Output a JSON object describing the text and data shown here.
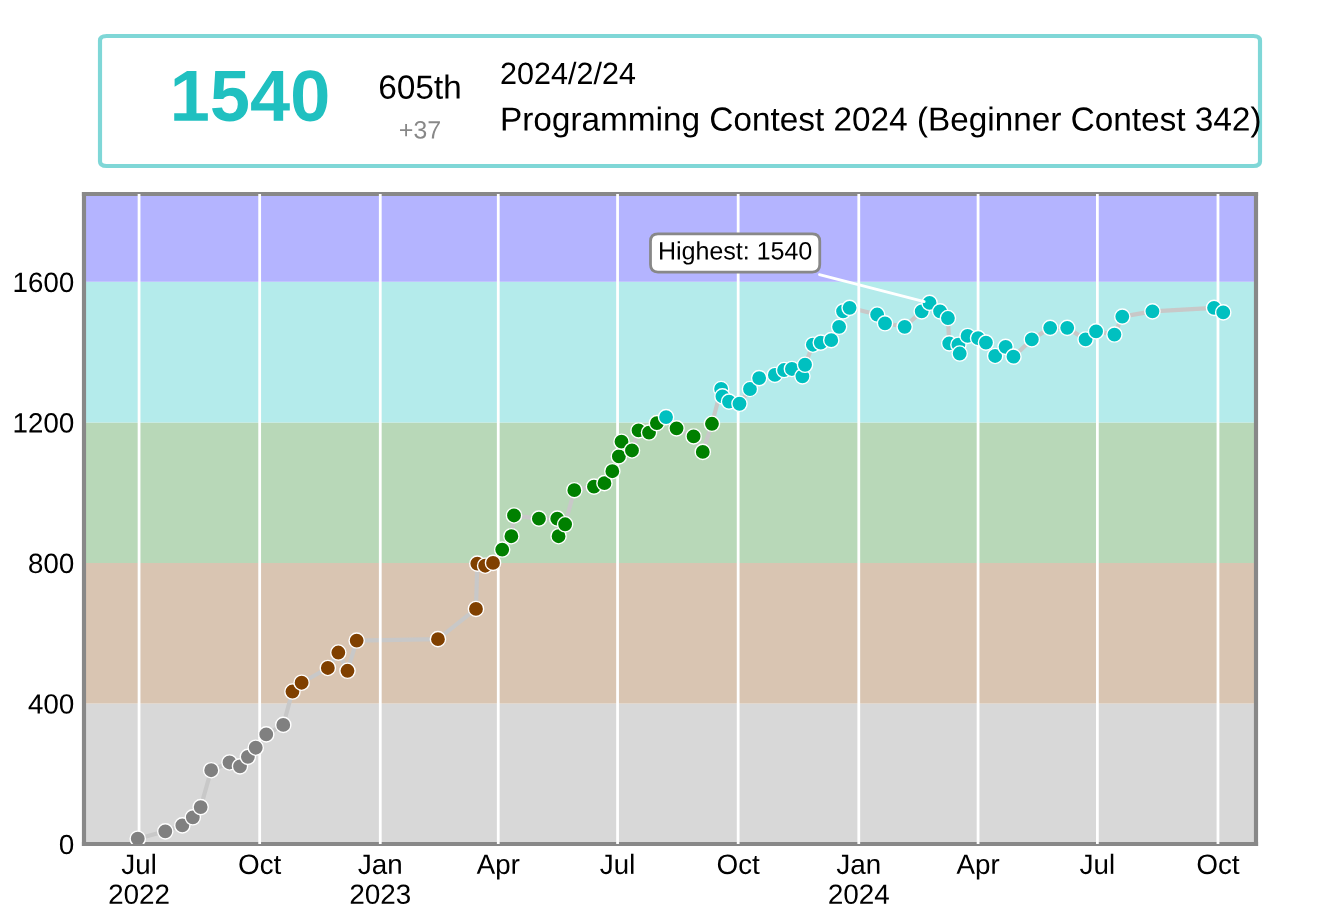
{
  "chart_data": {
    "type": "line",
    "title": "Programming Contest 2024 (Beginner Contest 342)",
    "annotations": [
      "1540",
      "605th",
      "+37",
      "2024/2/24",
      {
        "text": "Highest: 1540",
        "x": "2024-02-24",
        "y": 1540
      }
    ],
    "x": [
      "2022-06-30",
      "2022-07-21",
      "2022-08-03",
      "2022-08-11",
      "2022-08-17",
      "2022-08-25",
      "2022-09-08",
      "2022-09-16",
      "2022-09-22",
      "2022-09-28",
      "2022-10-06",
      "2022-10-19",
      "2022-10-26",
      "2022-11-02",
      "2022-11-22",
      "2022-11-30",
      "2022-12-07",
      "2022-12-14",
      "2023-02-14",
      "2023-03-15",
      "2023-03-16",
      "2023-03-22",
      "2023-03-28",
      "2023-04-04",
      "2023-04-11",
      "2023-04-13",
      "2023-05-02",
      "2023-05-16",
      "2023-05-17",
      "2023-05-22",
      "2023-05-29",
      "2023-06-13",
      "2023-06-21",
      "2023-06-27",
      "2023-07-02",
      "2023-07-04",
      "2023-07-12",
      "2023-07-17",
      "2023-07-25",
      "2023-07-31",
      "2023-08-07",
      "2023-08-15",
      "2023-08-28",
      "2023-09-04",
      "2023-09-11",
      "2023-09-18",
      "2023-09-19",
      "2023-09-24",
      "2023-10-02",
      "2023-10-10",
      "2023-10-17",
      "2023-10-29",
      "2023-11-05",
      "2023-11-11",
      "2023-11-19",
      "2023-11-21",
      "2023-11-27",
      "2023-12-03",
      "2023-12-11",
      "2023-12-17",
      "2023-12-20",
      "2023-12-25",
      "2024-01-15",
      "2024-01-21",
      "2024-02-05",
      "2024-02-18",
      "2024-02-24",
      "2024-03-03",
      "2024-03-09",
      "2024-03-10",
      "2024-03-17",
      "2024-03-18",
      "2024-03-24",
      "2024-04-01",
      "2024-04-07",
      "2024-04-14",
      "2024-04-22",
      "2024-04-28",
      "2024-05-12",
      "2024-05-26",
      "2024-06-08",
      "2024-06-22",
      "2024-06-30",
      "2024-07-14",
      "2024-07-20",
      "2024-08-12",
      "2024-09-28",
      "2024-10-05"
    ],
    "series": [
      {
        "color": "#c8c8c8",
        "values": [
          15,
          36,
          53,
          76,
          105,
          210,
          232,
          221,
          248,
          274,
          312,
          339,
          434,
          459,
          501,
          545,
          493,
          579,
          583,
          669,
          798,
          792,
          800,
          838,
          876,
          935,
          926,
          926,
          876,
          910,
          1007,
          1017,
          1027,
          1061,
          1103,
          1145,
          1120,
          1177,
          1171,
          1198,
          1215,
          1183,
          1160,
          1116,
          1196,
          1295,
          1274,
          1259,
          1253,
          1295,
          1326,
          1335,
          1349,
          1352,
          1331,
          1364,
          1421,
          1427,
          1434,
          1472,
          1516,
          1526,
          1507,
          1482,
          1472,
          1516,
          1540,
          1516,
          1497,
          1425,
          1421,
          1396,
          1446,
          1440,
          1427,
          1389,
          1415,
          1387,
          1436,
          1469,
          1469,
          1436,
          1459,
          1450,
          1501,
          1516,
          1526,
          1513
        ],
        "colors": [
          "#808080",
          "#808080",
          "#808080",
          "#808080",
          "#808080",
          "#808080",
          "#808080",
          "#808080",
          "#808080",
          "#808080",
          "#808080",
          "#808080",
          "#804000",
          "#804000",
          "#804000",
          "#804000",
          "#804000",
          "#804000",
          "#804000",
          "#804000",
          "#804000",
          "#804000",
          "#804000",
          "#008000",
          "#008000",
          "#008000",
          "#008000",
          "#008000",
          "#008000",
          "#008000",
          "#008000",
          "#008000",
          "#008000",
          "#008000",
          "#008000",
          "#008000",
          "#008000",
          "#008000",
          "#008000",
          "#008000",
          "#00c0c0",
          "#008000",
          "#008000",
          "#008000",
          "#008000",
          "#00c0c0",
          "#00c0c0",
          "#00c0c0",
          "#00c0c0",
          "#00c0c0",
          "#00c0c0",
          "#00c0c0",
          "#00c0c0",
          "#00c0c0",
          "#00c0c0",
          "#00c0c0",
          "#00c0c0",
          "#00c0c0",
          "#00c0c0",
          "#00c0c0",
          "#00c0c0",
          "#00c0c0",
          "#00c0c0",
          "#00c0c0",
          "#00c0c0",
          "#00c0c0",
          "#00c0c0",
          "#00c0c0",
          "#00c0c0",
          "#00c0c0",
          "#00c0c0",
          "#00c0c0",
          "#00c0c0",
          "#00c0c0",
          "#00c0c0",
          "#00c0c0",
          "#00c0c0",
          "#00c0c0",
          "#00c0c0",
          "#00c0c0",
          "#00c0c0",
          "#00c0c0",
          "#00c0c0",
          "#00c0c0",
          "#00c0c0",
          "#00c0c0",
          "#00c0c0",
          "#00c0c0"
        ]
      }
    ],
    "marker": "circle",
    "line_style": "solid",
    "grid": "x",
    "legend": false,
    "bands": [
      {
        "axis": "y",
        "from": 0,
        "to": 400,
        "color": "#d8d8d8"
      },
      {
        "axis": "y",
        "from": 400,
        "to": 800,
        "color": "#d9c5b2"
      },
      {
        "axis": "y",
        "from": 800,
        "to": 1200,
        "color": "#b8d8b8"
      },
      {
        "axis": "y",
        "from": 1200,
        "to": 1600,
        "color": "#b4ebeb"
      },
      {
        "axis": "y",
        "from": 1600,
        "to": 1850,
        "color": "#b4b4ff"
      }
    ],
    "xlim": [
      "2022-05-20",
      "2024-10-30"
    ],
    "xticks": [
      {
        "value": "2022-07-01",
        "label": "Jul\n2022"
      },
      {
        "value": "2022-10-01",
        "label": "Oct"
      },
      {
        "value": "2023-01-01",
        "label": "Jan\n2023"
      },
      {
        "value": "2023-04-01",
        "label": "Apr"
      },
      {
        "value": "2023-07-01",
        "label": "Jul"
      },
      {
        "value": "2023-10-01",
        "label": "Oct"
      },
      {
        "value": "2024-01-01",
        "label": "Jan\n2024"
      },
      {
        "value": "2024-04-01",
        "label": "Apr"
      },
      {
        "value": "2024-07-01",
        "label": "Jul"
      },
      {
        "value": "2024-10-01",
        "label": "Oct"
      }
    ],
    "ylim": [
      0,
      1850
    ],
    "yticks": [
      0,
      400,
      800,
      1200,
      1600
    ]
  }
}
